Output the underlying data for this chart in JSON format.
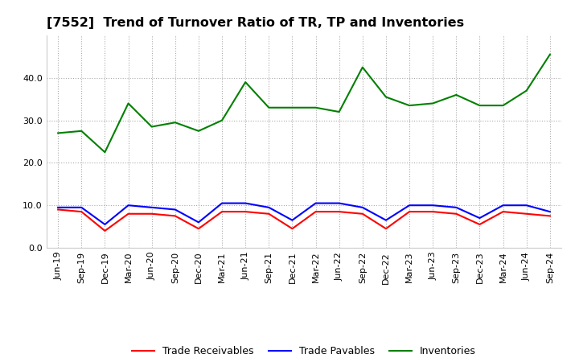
{
  "title": "[7552]  Trend of Turnover Ratio of TR, TP and Inventories",
  "ylim": [
    0.0,
    50.0
  ],
  "yticks": [
    0.0,
    10.0,
    20.0,
    30.0,
    40.0
  ],
  "categories": [
    "Jun-19",
    "Sep-19",
    "Dec-19",
    "Mar-20",
    "Jun-20",
    "Sep-20",
    "Dec-20",
    "Mar-21",
    "Jun-21",
    "Sep-21",
    "Dec-21",
    "Mar-22",
    "Jun-22",
    "Sep-22",
    "Dec-22",
    "Mar-23",
    "Jun-23",
    "Sep-23",
    "Dec-23",
    "Mar-24",
    "Jun-24",
    "Sep-24"
  ],
  "trade_receivables": [
    9.0,
    8.5,
    4.0,
    8.0,
    8.0,
    7.5,
    4.5,
    8.5,
    8.5,
    8.0,
    4.5,
    8.5,
    8.5,
    8.0,
    4.5,
    8.5,
    8.5,
    8.0,
    5.5,
    8.5,
    8.0,
    7.5
  ],
  "trade_payables": [
    9.5,
    9.5,
    5.5,
    10.0,
    9.5,
    9.0,
    6.0,
    10.5,
    10.5,
    9.5,
    6.5,
    10.5,
    10.5,
    9.5,
    6.5,
    10.0,
    10.0,
    9.5,
    7.0,
    10.0,
    10.0,
    8.5
  ],
  "inventories": [
    27.0,
    27.5,
    22.5,
    34.0,
    28.5,
    29.5,
    27.5,
    30.0,
    39.0,
    33.0,
    33.0,
    33.0,
    32.0,
    42.5,
    35.5,
    33.5,
    34.0,
    36.0,
    33.5,
    33.5,
    37.0,
    45.5
  ],
  "color_tr": "#ff0000",
  "color_tp": "#0000ff",
  "color_inv": "#008000",
  "line_width": 1.5,
  "grid_color": "#aaaaaa",
  "bg_color": "#ffffff",
  "legend_labels": [
    "Trade Receivables",
    "Trade Payables",
    "Inventories"
  ],
  "title_fontsize": 11.5,
  "tick_fontsize": 8.0
}
